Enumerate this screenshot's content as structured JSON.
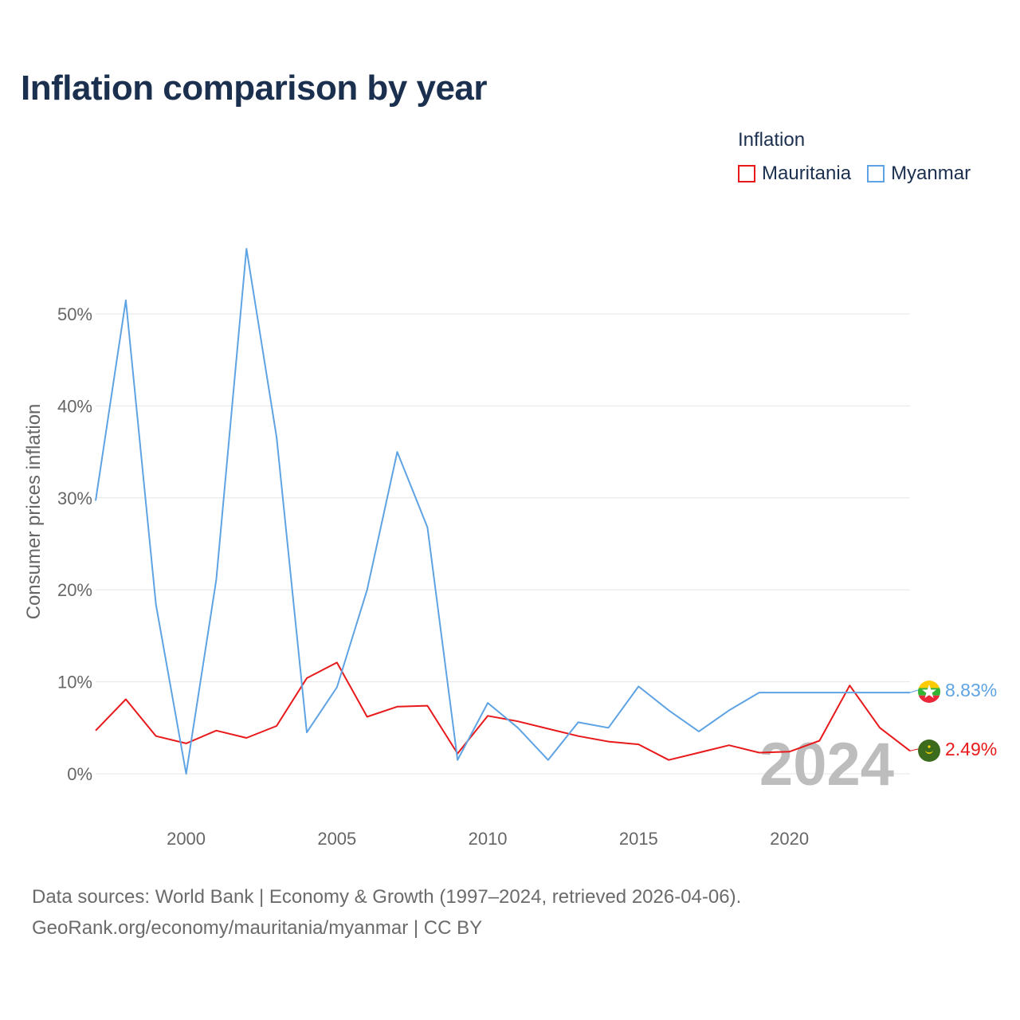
{
  "title": "Inflation comparison by year",
  "legend": {
    "title": "Inflation",
    "items": [
      {
        "name": "Mauritania",
        "color": "#e8191b"
      },
      {
        "name": "Myanmar",
        "color": "#5ea3e3"
      }
    ]
  },
  "source": {
    "line1": "Data sources: World Bank | Economy & Growth (1997–2024, retrieved 2026-04-06).",
    "line2": "GeoRank.org/economy/mauritania/myanmar | CC BY"
  },
  "chart_data": {
    "type": "line",
    "title": "Inflation comparison by year",
    "ylabel": "Consumer prices inflation",
    "xlabel": "",
    "xlim": [
      1997,
      2024
    ],
    "ylim": [
      -3.5,
      60
    ],
    "yticks": [
      0,
      10,
      20,
      30,
      40,
      50
    ],
    "ytick_labels": [
      "0%",
      "10%",
      "20%",
      "30%",
      "40%",
      "50%"
    ],
    "xticks": [
      2000,
      2005,
      2010,
      2015,
      2020
    ],
    "xtick_labels": [
      "2000",
      "2005",
      "2010",
      "2015",
      "2020"
    ],
    "x": [
      1997,
      1998,
      1999,
      2000,
      2001,
      2002,
      2003,
      2004,
      2005,
      2006,
      2007,
      2008,
      2009,
      2010,
      2011,
      2012,
      2013,
      2014,
      2015,
      2016,
      2017,
      2018,
      2019,
      2020,
      2021,
      2022,
      2023,
      2024
    ],
    "series": [
      {
        "name": "Mauritania",
        "color": "#e8191b",
        "values": [
          4.7,
          8.1,
          4.1,
          3.3,
          4.7,
          3.9,
          5.2,
          10.4,
          12.1,
          6.2,
          7.3,
          7.4,
          2.2,
          6.3,
          5.7,
          4.9,
          4.1,
          3.5,
          3.2,
          1.5,
          2.3,
          3.1,
          2.3,
          2.4,
          3.6,
          9.6,
          5.0,
          2.49
        ],
        "end_label": "2.49%"
      },
      {
        "name": "Myanmar",
        "color": "#5ea3e3",
        "values": [
          29.7,
          51.5,
          18.4,
          0.0,
          21.1,
          57.1,
          36.6,
          4.5,
          9.4,
          20.0,
          35.0,
          26.8,
          1.5,
          7.7,
          5.0,
          1.5,
          5.6,
          5.0,
          9.5,
          6.9,
          4.6,
          6.9,
          8.83,
          8.83,
          8.83,
          8.83,
          8.83,
          8.83
        ],
        "end_label": "8.83%"
      }
    ],
    "watermark_year": "2024"
  }
}
